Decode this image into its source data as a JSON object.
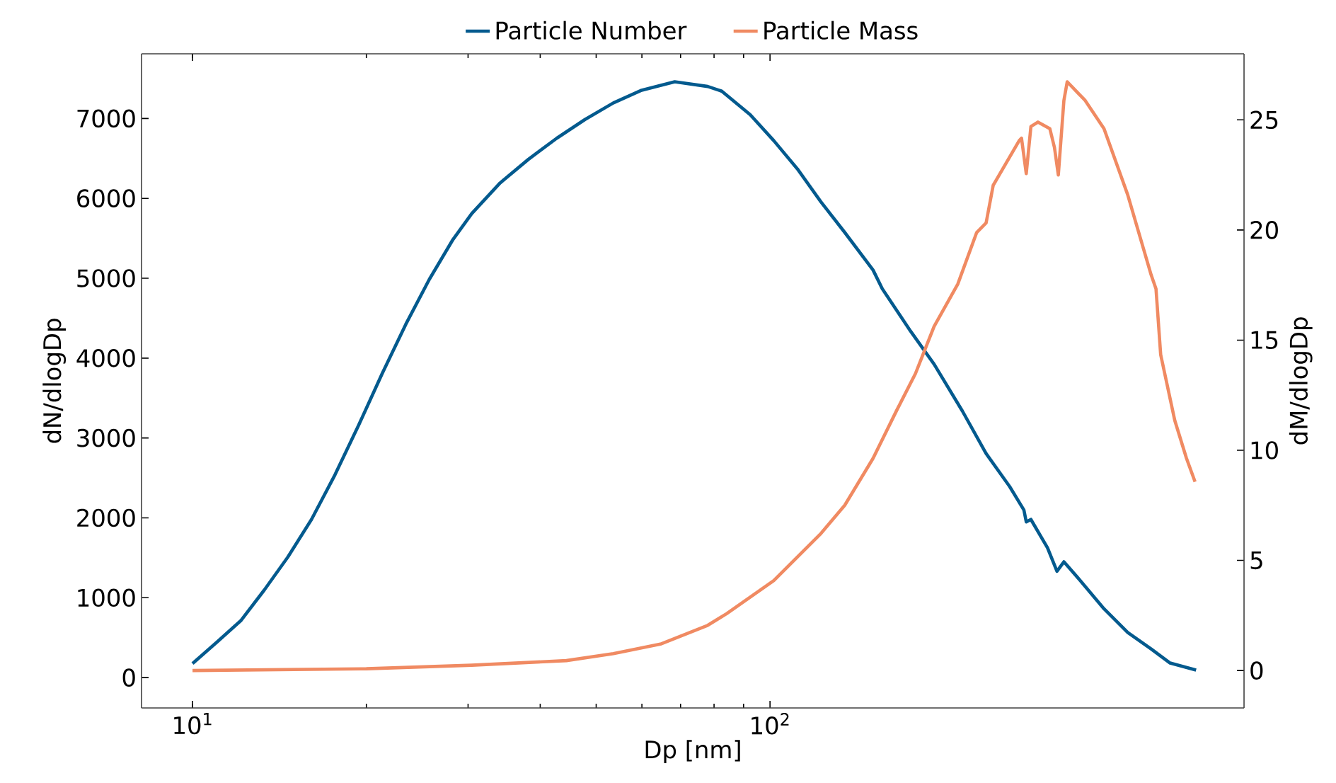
{
  "chart_data": {
    "type": "line",
    "xlabel": "Dp [nm]",
    "ylabel": "dN/dlogDp",
    "y2label": "dM/dlogDp",
    "log": "x",
    "legend": "top",
    "xlim": [
      8.16,
      662
    ],
    "xticks": [
      {
        "value": 10,
        "label": "10$^{1}$"
      },
      {
        "value": 100,
        "label": "10$^{2}$"
      }
    ],
    "ylim": [
      -380,
      7810
    ],
    "yticks": [
      0,
      1000,
      2000,
      3000,
      4000,
      5000,
      6000,
      7000
    ],
    "y2lim": [
      -1.7,
      28.0
    ],
    "y2ticks": [
      0,
      5,
      10,
      15,
      20,
      25
    ],
    "series": [
      {
        "name": "Particle Number",
        "color": "#035a8e",
        "axis": "y",
        "x": [
          10,
          11.03,
          12.12,
          13.31,
          14.62,
          16.07,
          17.65,
          19.39,
          21.3,
          23.41,
          25.7,
          28.25,
          30.45,
          34.09,
          38.16,
          42.73,
          47.83,
          53.55,
          59.95,
          68.4,
          78.0,
          82.5,
          92.4,
          101.5,
          111.5,
          122.5,
          134.7,
          150.8,
          156.5,
          175.2,
          192.4,
          215.4,
          236.7,
          260.0,
          275.2,
          277.8,
          283,
          302.3,
          314,
          322.8,
          344.7,
          378.8,
          416.3,
          457,
          493,
          546.8
        ],
        "values": [
          177,
          447,
          712,
          1096,
          1508,
          1980,
          2540,
          3159,
          3806,
          4425,
          4985,
          5485,
          5810,
          6193,
          6488,
          6753,
          6988,
          7195,
          7354,
          7460,
          7401,
          7342,
          7048,
          6723,
          6370,
          5957,
          5574,
          5103,
          4867,
          4336,
          3924,
          3336,
          2805,
          2392,
          2098,
          1950,
          1980,
          1626,
          1331,
          1450,
          1214,
          861,
          566,
          359,
          182,
          94
        ]
      },
      {
        "name": "Particle Mass",
        "color": "#f08a62",
        "axis": "y2",
        "x": [
          10,
          20,
          30.45,
          44.4,
          53.55,
          64.6,
          78.0,
          84.1,
          101.5,
          122.5,
          134.7,
          150.8,
          165.5,
          178.6,
          192.4,
          211.4,
          228,
          236.7,
          243.5,
          270.1,
          272.6,
          277.8,
          283,
          291.1,
          305.2,
          310.9,
          315.7,
          322.8,
          327.1,
          351.4,
          378.8,
          416.3,
          457,
          466.0,
          474.8,
          502.3,
          526.3,
          544.5
        ],
        "values": [
          0,
          0.08,
          0.24,
          0.45,
          0.77,
          1.2,
          2.05,
          2.58,
          4.08,
          6.22,
          7.5,
          9.63,
          11.78,
          13.48,
          15.62,
          17.54,
          19.89,
          20.32,
          22.03,
          24.06,
          24.17,
          22.56,
          24.7,
          24.9,
          24.6,
          23.74,
          22.5,
          25.88,
          26.73,
          25.88,
          24.6,
          21.6,
          17.97,
          17.33,
          14.34,
          11.35,
          9.63,
          8.57
        ]
      }
    ]
  }
}
